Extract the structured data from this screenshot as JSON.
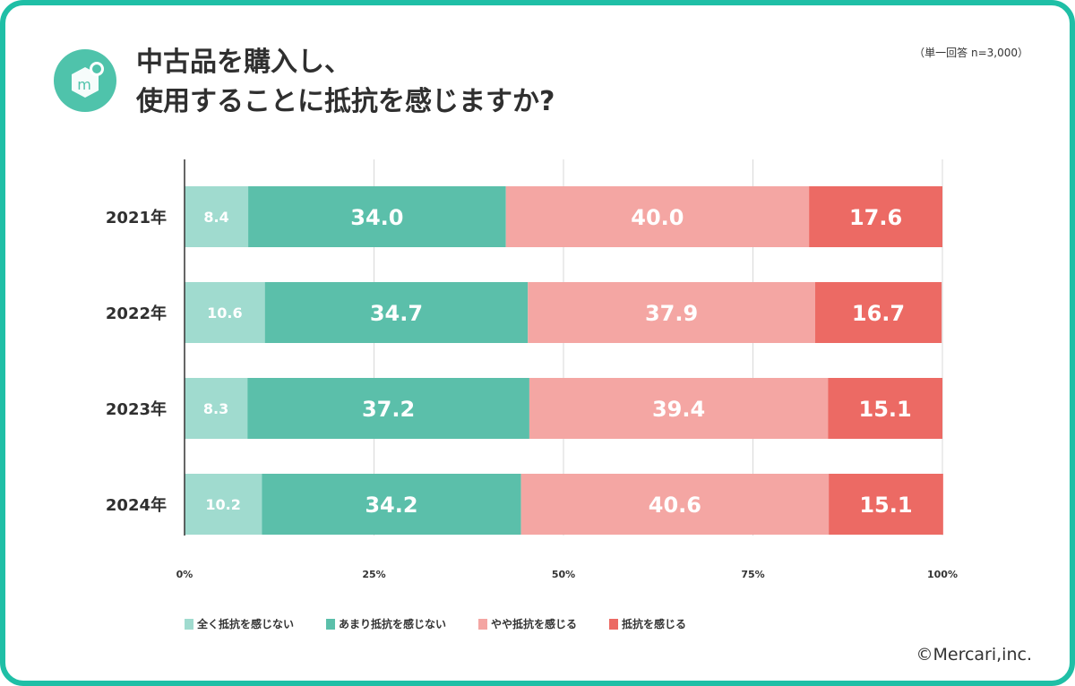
{
  "title_line1": "中古品を購入し、",
  "title_line2": "使用することに抵抗を感じますか?",
  "note": "（単一回答 n=3,000）",
  "credit": "©Mercari,inc.",
  "logo_letter": "m",
  "colors": {
    "frame": "#1fbfa6",
    "logo": "#4fc3ab",
    "series": [
      "#a0dbcf",
      "#5bbfaa",
      "#f4a6a3",
      "#ec6a64"
    ]
  },
  "chart_data": {
    "type": "bar",
    "orientation": "horizontal",
    "stacked": true,
    "categories": [
      "2021年",
      "2022年",
      "2023年",
      "2024年"
    ],
    "series": [
      {
        "name": "全く抵抗を感じない",
        "values": [
          8.4,
          10.6,
          8.3,
          10.2
        ]
      },
      {
        "name": "あまり抵抗を感じない",
        "values": [
          34.0,
          34.7,
          37.2,
          34.2
        ]
      },
      {
        "name": "やや抵抗を感じる",
        "values": [
          40.0,
          37.9,
          39.4,
          40.6
        ]
      },
      {
        "name": "抵抗を感じる",
        "values": [
          17.6,
          16.7,
          15.1,
          15.1
        ]
      }
    ],
    "xlim": [
      0,
      100
    ],
    "x_ticks": [
      "0%",
      "25%",
      "50%",
      "75%",
      "100%"
    ],
    "grid": true,
    "legend_position": "bottom"
  }
}
